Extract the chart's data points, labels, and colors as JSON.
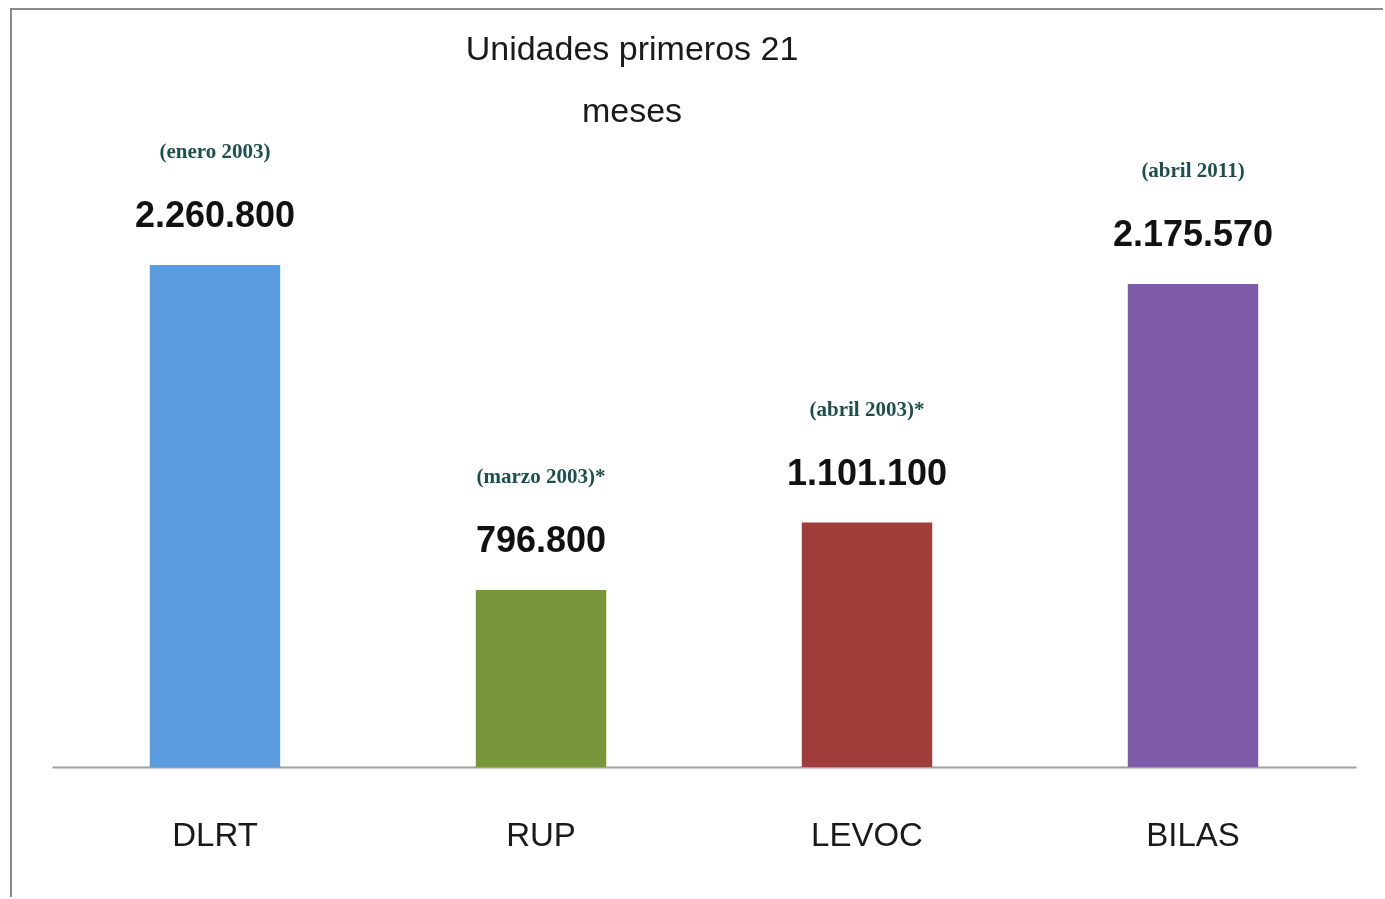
{
  "chart_data": {
    "type": "bar",
    "title": "Unidades primeros 21 meses",
    "categories": [
      "DLRT",
      "RUP",
      "LEVOC",
      "BILAS"
    ],
    "values": [
      2260800,
      796800,
      1101100,
      2175570
    ],
    "colors": [
      "#5b9be0",
      "#78973b",
      "#a03c3a",
      "#7e5ba8"
    ],
    "value_labels": [
      "2.260.800",
      "796.800",
      "1.101.100",
      "2.175.570"
    ],
    "annotations": [
      "(enero 2003)",
      "(marzo 2003)*",
      "(abril  2003)*",
      "(abril 2011)"
    ]
  }
}
